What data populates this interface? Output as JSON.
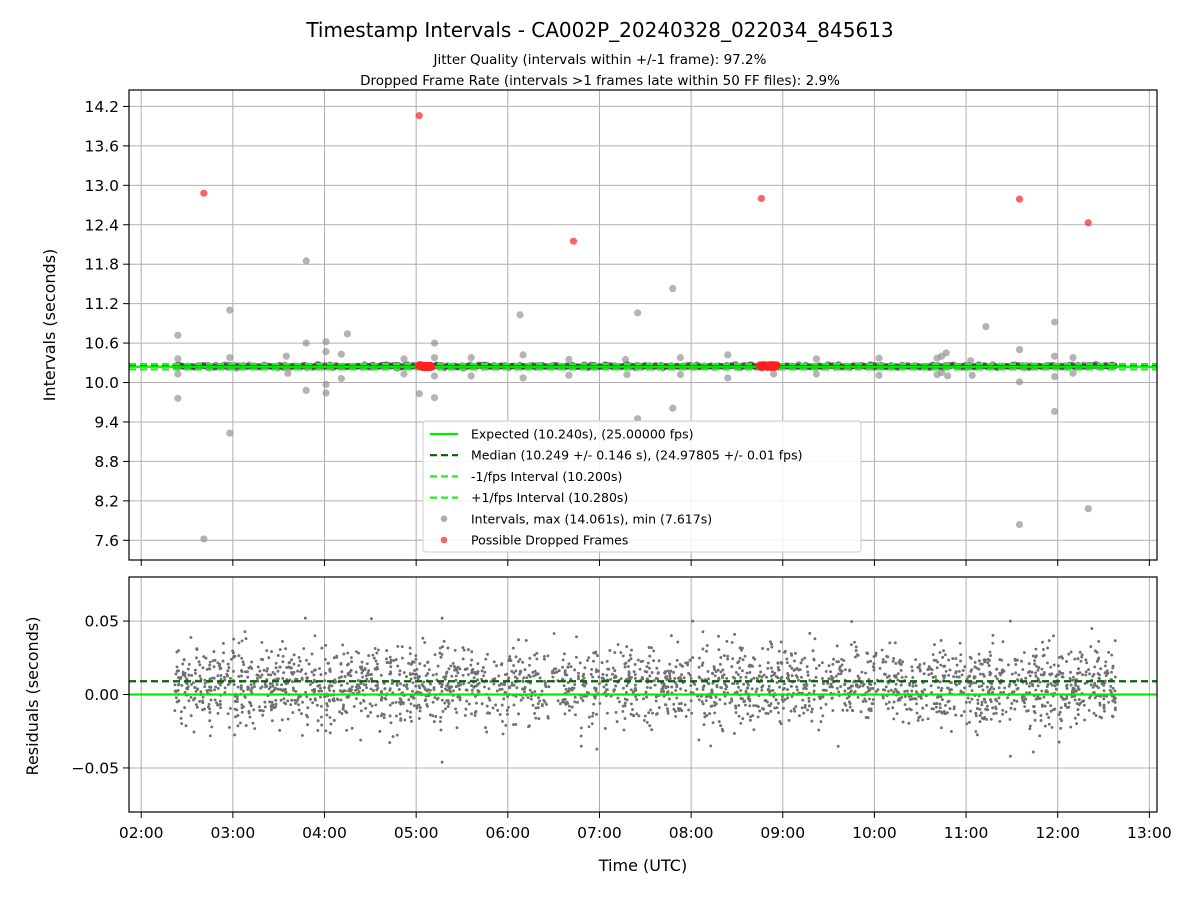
{
  "figure": {
    "title": "Timestamp Intervals - CA002P_20240328_022034_845613",
    "subtitle_line1": "Jitter Quality (intervals within +/-1 frame): 97.2%",
    "subtitle_line2": "Dropped Frame Rate (intervals >1 frames late within 50 FF files): 2.9%"
  },
  "colors": {
    "expected": "#00ee00",
    "median": "#006400",
    "interval_band": "#22ee22",
    "intervals": "#8c8c8c",
    "dropped": "#ff2020",
    "residuals": "#707070",
    "grid": "#b0b0b0"
  },
  "chart_data": [
    {
      "type": "scatter",
      "panel": "intervals",
      "xlabel": "",
      "ylabel": "Intervals (seconds)",
      "xlim": [
        "01:52",
        "13:05"
      ],
      "ylim": [
        7.3,
        14.45
      ],
      "xticks": [
        "02:00",
        "03:00",
        "04:00",
        "05:00",
        "06:00",
        "07:00",
        "08:00",
        "09:00",
        "10:00",
        "11:00",
        "12:00",
        "13:00"
      ],
      "yticks": [
        "7.6",
        "8.2",
        "8.8",
        "9.4",
        "10.0",
        "10.6",
        "11.2",
        "11.8",
        "12.4",
        "13.0",
        "13.6",
        "14.2"
      ],
      "grid": true,
      "legend_position": "lower-center",
      "lines": [
        {
          "name": "Expected (10.240s), (25.00000 fps)",
          "y": 10.24,
          "style": "solid",
          "color_key": "expected"
        },
        {
          "name": "Median (10.249 +/- 0.146 s), (24.97805 +/- 0.01 fps)",
          "y": 10.249,
          "style": "dashed",
          "color_key": "median"
        },
        {
          "name": "-1/fps Interval (10.200s)",
          "y": 10.2,
          "style": "dashed",
          "color_key": "interval_band"
        },
        {
          "name": "+1/fps Interval (10.280s)",
          "y": 10.28,
          "style": "dashed",
          "color_key": "interval_band"
        }
      ],
      "scatter_series": [
        {
          "name": "Intervals, max (14.061s), min (7.617s)",
          "color_key": "intervals",
          "points": [
            [
              "02:24",
              10.72
            ],
            [
              "02:24",
              10.36
            ],
            [
              "02:24",
              10.13
            ],
            [
              "02:24",
              9.76
            ],
            [
              "02:41",
              7.62
            ],
            [
              "02:58",
              11.1
            ],
            [
              "02:58",
              10.38
            ],
            [
              "02:58",
              9.23
            ],
            [
              "03:35",
              10.4
            ],
            [
              "03:36",
              10.14
            ],
            [
              "03:48",
              11.85
            ],
            [
              "03:48",
              10.6
            ],
            [
              "03:48",
              9.88
            ],
            [
              "04:01",
              10.62
            ],
            [
              "04:01",
              10.47
            ],
            [
              "04:01",
              9.97
            ],
            [
              "04:01",
              9.84
            ],
            [
              "04:11",
              10.43
            ],
            [
              "04:11",
              10.06
            ],
            [
              "04:15",
              10.74
            ],
            [
              "04:52",
              10.36
            ],
            [
              "04:52",
              10.13
            ],
            [
              "05:02",
              9.83
            ],
            [
              "05:12",
              10.6
            ],
            [
              "05:12",
              10.38
            ],
            [
              "05:12",
              10.1
            ],
            [
              "05:12",
              9.77
            ],
            [
              "05:36",
              10.38
            ],
            [
              "05:36",
              10.1
            ],
            [
              "06:08",
              11.03
            ],
            [
              "06:10",
              10.42
            ],
            [
              "06:10",
              10.07
            ],
            [
              "06:40",
              10.35
            ],
            [
              "06:40",
              10.11
            ],
            [
              "07:17",
              10.35
            ],
            [
              "07:18",
              10.12
            ],
            [
              "07:25",
              11.06
            ],
            [
              "07:25",
              9.45
            ],
            [
              "07:48",
              11.43
            ],
            [
              "07:48",
              9.61
            ],
            [
              "07:53",
              10.38
            ],
            [
              "07:53",
              10.12
            ],
            [
              "08:24",
              10.42
            ],
            [
              "08:24",
              10.07
            ],
            [
              "08:54",
              10.13
            ],
            [
              "09:22",
              10.36
            ],
            [
              "09:22",
              10.13
            ],
            [
              "10:03",
              10.37
            ],
            [
              "10:03",
              10.11
            ],
            [
              "10:41",
              10.37
            ],
            [
              "10:41",
              10.12
            ],
            [
              "10:44",
              10.4
            ],
            [
              "10:44",
              10.15
            ],
            [
              "10:47",
              10.45
            ],
            [
              "10:48",
              10.1
            ],
            [
              "11:03",
              10.33
            ],
            [
              "11:04",
              10.11
            ],
            [
              "11:13",
              10.85
            ],
            [
              "11:35",
              10.5
            ],
            [
              "11:35",
              10.01
            ],
            [
              "11:35",
              7.84
            ],
            [
              "11:58",
              10.92
            ],
            [
              "11:58",
              10.4
            ],
            [
              "11:58",
              10.09
            ],
            [
              "11:58",
              9.56
            ],
            [
              "12:10",
              10.38
            ],
            [
              "12:10",
              10.14
            ],
            [
              "12:20",
              8.08
            ]
          ]
        },
        {
          "name": "Possible Dropped Frames",
          "color_key": "dropped",
          "points": [
            [
              "02:41",
              12.88
            ],
            [
              "05:02",
              14.06
            ],
            [
              "06:43",
              12.15
            ],
            [
              "08:46",
              12.8
            ],
            [
              "11:35",
              12.79
            ],
            [
              "12:20",
              12.43
            ]
          ],
          "clusters": [
            {
              "from": "05:02",
              "to": "05:10",
              "y": 10.25
            },
            {
              "from": "08:45",
              "to": "08:56",
              "y": 10.25
            }
          ]
        }
      ]
    },
    {
      "type": "scatter",
      "panel": "residuals",
      "xlabel": "Time (UTC)",
      "ylabel": "Residuals (seconds)",
      "xlim": [
        "01:52",
        "13:05"
      ],
      "ylim": [
        -0.08,
        0.08
      ],
      "xticks": [
        "02:00",
        "03:00",
        "04:00",
        "05:00",
        "06:00",
        "07:00",
        "08:00",
        "09:00",
        "10:00",
        "11:00",
        "12:00",
        "13:00"
      ],
      "yticks": [
        "−0.05",
        "0.00",
        "0.05"
      ],
      "grid": true,
      "lines": [
        {
          "y": 0.0,
          "style": "solid",
          "color_key": "expected"
        },
        {
          "y": 0.009,
          "style": "dashed",
          "color_key": "median"
        }
      ],
      "residual_cloud": {
        "from": "02:22",
        "to": "12:38",
        "center": 0.006,
        "spread": 0.013,
        "min": -0.046,
        "max": 0.052,
        "count": 2600
      }
    }
  ]
}
